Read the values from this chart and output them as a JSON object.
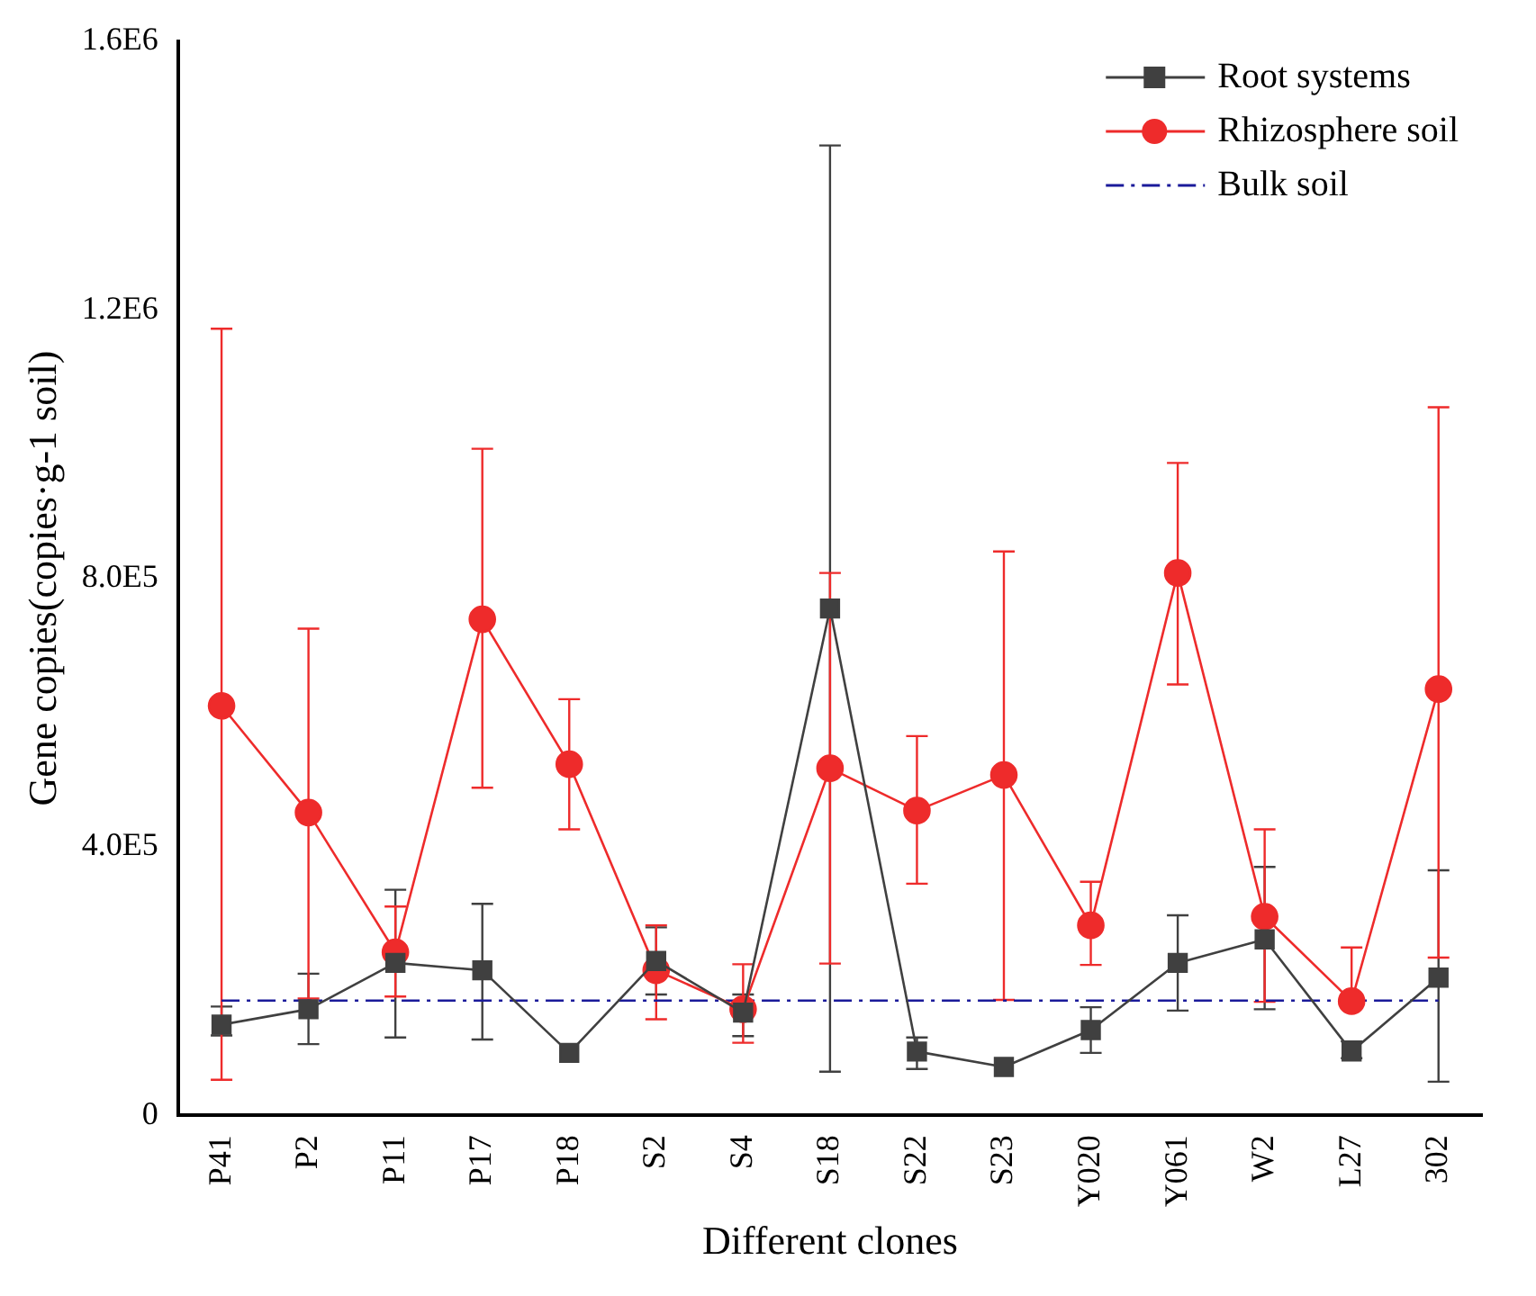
{
  "chart_data": {
    "type": "line",
    "xlabel": "Different clones",
    "ylabel": "Gene copies(copies·g-1 soil)",
    "categories": [
      "P41",
      "P2",
      "P11",
      "P17",
      "P18",
      "S2",
      "S4",
      "S18",
      "S22",
      "S23",
      "Y020",
      "Y061",
      "W2",
      "L27",
      "302"
    ],
    "ylim": [
      0,
      1600000
    ],
    "yticks": [
      {
        "value": 0,
        "label": "0"
      },
      {
        "value": 400000,
        "label": "4.0E5"
      },
      {
        "value": 800000,
        "label": "8.0E5"
      },
      {
        "value": 1200000,
        "label": "1.2E6"
      },
      {
        "value": 1600000,
        "label": "1.6E6"
      }
    ],
    "legend": "top right",
    "grid": false,
    "series": [
      {
        "name": "Root systems",
        "color": "#404040",
        "marker": "square",
        "line_style": "solid",
        "values": [
          135000,
          158000,
          227000,
          216000,
          93000,
          230000,
          153000,
          755000,
          95000,
          72000,
          127000,
          227000,
          262000,
          95000,
          205000
        ],
        "errors": [
          [
            119000,
            162000
          ],
          [
            106000,
            211000
          ],
          [
            116000,
            336000
          ],
          [
            113000,
            315000
          ],
          null,
          [
            180000,
            280000
          ],
          [
            118000,
            180000
          ],
          [
            65000,
            1445000
          ],
          [
            69000,
            116000
          ],
          null,
          [
            93000,
            161000
          ],
          [
            156000,
            298000
          ],
          [
            158000,
            370000
          ],
          [
            85000,
            110000
          ],
          [
            50000,
            365000
          ]
        ]
      },
      {
        "name": "Rhizosphere soil",
        "color": "#ee2b2b",
        "marker": "circle",
        "line_style": "solid",
        "values": [
          610000,
          451000,
          243000,
          739000,
          523000,
          216000,
          158000,
          517000,
          454000,
          507000,
          283000,
          808000,
          296000,
          170000,
          635000
        ],
        "errors": [
          [
            53000,
            1172000
          ],
          [
            174000,
            725000
          ],
          [
            177000,
            311000
          ],
          [
            488000,
            993000
          ],
          [
            426000,
            620000
          ],
          [
            143000,
            283000
          ],
          [
            108000,
            225000
          ],
          [
            226000,
            808000
          ],
          [
            345000,
            565000
          ],
          [
            172000,
            840000
          ],
          [
            224000,
            348000
          ],
          [
            642000,
            972000
          ],
          [
            169000,
            426000
          ],
          [
            170000,
            250000
          ],
          [
            235000,
            1055000
          ]
        ]
      },
      {
        "name": "Bulk soil",
        "color": "#1a1a9a",
        "marker": "none",
        "line_style": "dashed",
        "values": [
          171000,
          171000,
          171000,
          171000,
          171000,
          171000,
          171000,
          171000,
          171000,
          171000,
          171000,
          171000,
          171000,
          171000,
          171000
        ]
      }
    ]
  }
}
